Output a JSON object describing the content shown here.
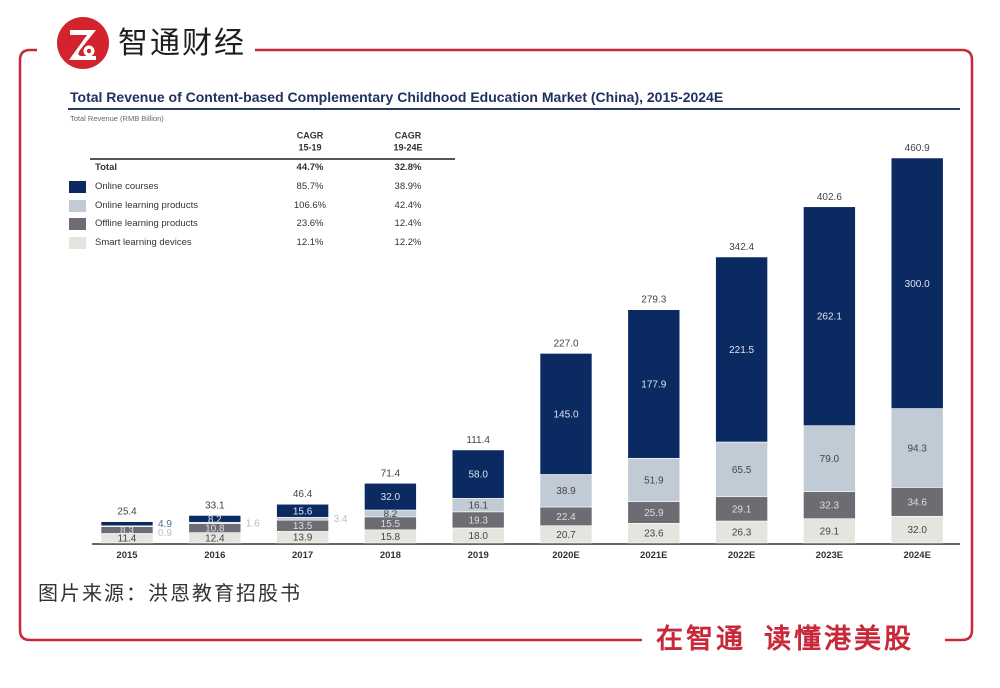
{
  "brand": {
    "name": "智通财经",
    "logo_icon": "zhitong-logo",
    "slogan_part1": "在智通",
    "slogan_part2": "读懂港美股",
    "accent_color": "#c8283a"
  },
  "source_note": "图片来源：洪恩教育招股书",
  "chart_data": {
    "type": "bar",
    "stacked": true,
    "title": "Total Revenue of Content-based Complementary Childhood Education Market (China), 2015-2024E",
    "ylabel": "Total Revenue (RMB Billion)",
    "xlabel": "",
    "ylim": [
      0,
      500
    ],
    "grid": false,
    "legend_position": "top-left",
    "categories": [
      "2015",
      "2016",
      "2017",
      "2018",
      "2019",
      "2020E",
      "2021E",
      "2022E",
      "2023E",
      "2024E"
    ],
    "totals": [
      25.4,
      33.1,
      46.4,
      71.4,
      111.4,
      227.0,
      279.3,
      342.4,
      402.6,
      460.9
    ],
    "series": [
      {
        "name": "Online courses",
        "color": "#0b2a61",
        "cagr": [
          "85.7%",
          "38.9%"
        ],
        "values": [
          4.9,
          8.2,
          15.6,
          32.0,
          58.0,
          145.0,
          177.9,
          221.5,
          262.1,
          300.0
        ]
      },
      {
        "name": "Online learning products",
        "color": "#c0cbd6",
        "cagr": [
          "106.6%",
          "42.4%"
        ],
        "values": [
          0.9,
          1.6,
          3.4,
          8.2,
          16.1,
          38.9,
          51.9,
          65.5,
          79.0,
          94.3
        ]
      },
      {
        "name": "Offline learning products",
        "color": "#6e6c73",
        "cagr": [
          "23.6%",
          "12.4%"
        ],
        "values": [
          8.3,
          10.8,
          13.5,
          15.5,
          19.3,
          22.4,
          25.9,
          29.1,
          32.3,
          34.6
        ]
      },
      {
        "name": "Smart learning devices",
        "color": "#e5e4df",
        "cagr": [
          "12.1%",
          "12.2%"
        ],
        "values": [
          11.4,
          12.4,
          13.9,
          15.8,
          18.0,
          20.7,
          23.6,
          26.3,
          29.1,
          32.0
        ]
      }
    ],
    "cagr_table": {
      "columns": [
        {
          "line1": "CAGR",
          "line2": "15-19"
        },
        {
          "line1": "CAGR",
          "line2": "19-24E"
        }
      ],
      "total": {
        "label": "Total",
        "values": [
          "44.7%",
          "32.8%"
        ]
      }
    }
  }
}
